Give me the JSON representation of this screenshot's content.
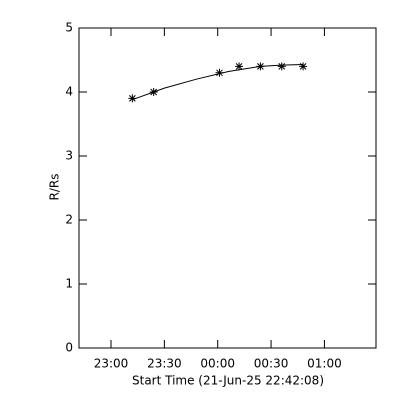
{
  "chart_data": {
    "type": "scatter",
    "y_label": "R/Rs",
    "x_label": "Start Time (21-Jun-25 22:42:08)",
    "xlim": [
      "22:42",
      "01:29"
    ],
    "xticks": [
      "23:00",
      "23:30",
      "00:00",
      "00:30",
      "01:00"
    ],
    "ylim": [
      0,
      5
    ],
    "yticks": [
      0,
      1,
      2,
      3,
      4,
      5
    ],
    "color": "#000000",
    "series": [
      {
        "marker": "asterisk",
        "x": [
          "23:12",
          "23:24",
          "00:01",
          "00:12",
          "00:24",
          "00:36",
          "00:48"
        ],
        "values": [
          3.9,
          4.0,
          4.3,
          4.4,
          4.4,
          4.4,
          4.4
        ]
      },
      {
        "marker": "line",
        "x": [
          "23:12",
          "23:30",
          "23:48",
          "00:06",
          "00:24",
          "00:36",
          "00:48"
        ],
        "values": [
          3.88,
          4.06,
          4.2,
          4.32,
          4.4,
          4.42,
          4.43
        ]
      }
    ]
  }
}
